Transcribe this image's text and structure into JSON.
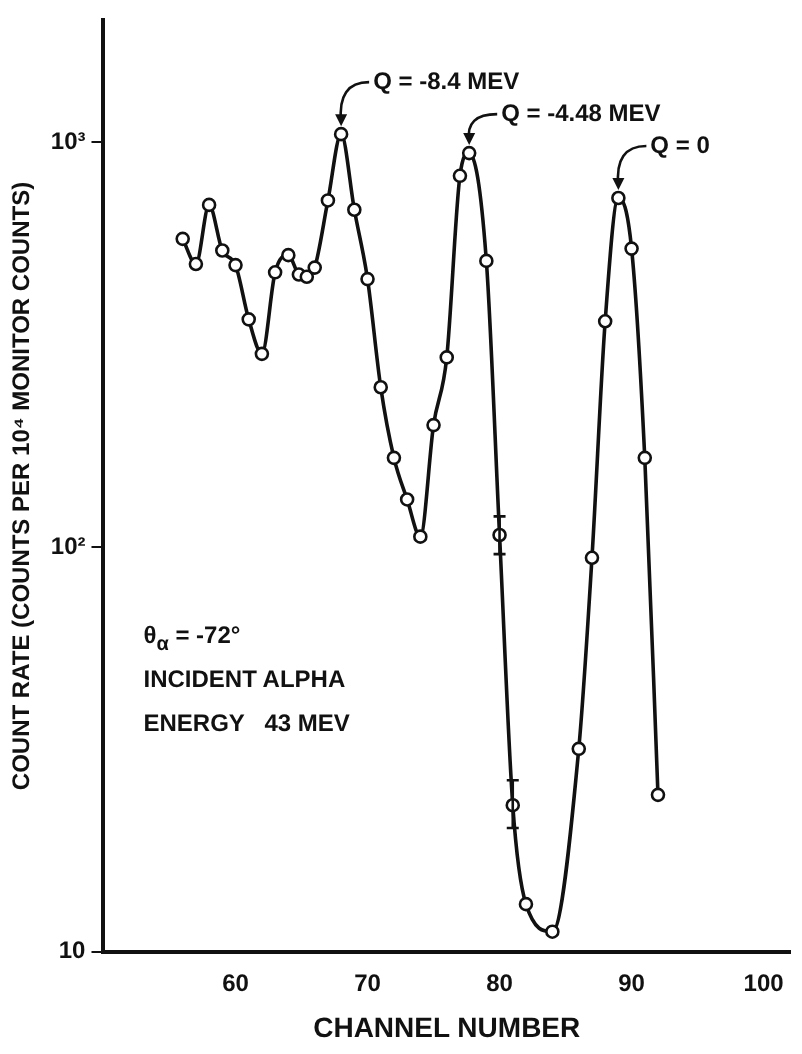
{
  "chart_data": {
    "type": "line",
    "xlabel": "CHANNEL NUMBER",
    "ylabel": "COUNT RATE (COUNTS PER 10⁴ MONITOR COUNTS)",
    "x": [
      56,
      57,
      58,
      59,
      60,
      61,
      62,
      63,
      64,
      64.8,
      65.4,
      66,
      67,
      68,
      69,
      70,
      71,
      72,
      73,
      74,
      75,
      76,
      77,
      77.7,
      79,
      80,
      81,
      82,
      84,
      86,
      87,
      88,
      89,
      90,
      91,
      92
    ],
    "series": [
      {
        "color": "#111111",
        "values": [
          577,
          500,
          700,
          540,
          497,
          365,
          300,
          477,
          526,
          471,
          465,
          490,
          718,
          1047,
          681,
          459,
          248,
          166,
          131,
          106,
          200,
          294,
          826,
          940,
          509,
          107,
          23,
          13.1,
          11.2,
          31.7,
          94,
          361,
          728,
          546,
          166,
          24.4
        ],
        "errors": [
          null,
          null,
          null,
          null,
          null,
          null,
          null,
          null,
          null,
          null,
          null,
          null,
          null,
          null,
          null,
          null,
          null,
          null,
          null,
          null,
          null,
          null,
          null,
          null,
          null,
          [
            96,
            119
          ],
          [
            20.2,
            26.5
          ],
          null,
          null,
          null,
          null,
          null,
          null,
          null,
          null,
          null
        ]
      }
    ],
    "log": "y",
    "xlim": [
      50,
      102
    ],
    "xticks": [
      60,
      70,
      80,
      90,
      100
    ],
    "ylim": [
      10,
      2000
    ],
    "yticks": [
      10,
      {
        "value": 100,
        "label": "10²"
      },
      {
        "value": 1000,
        "label": "10³"
      }
    ],
    "grid": false,
    "legend": false,
    "marker": "circle",
    "line_style": "solid",
    "annotations": [
      {
        "text": "Q = -8.4 MEV",
        "x": 68,
        "y": 1047
      },
      {
        "text": "Q = -4.48 MEV",
        "x": 77.7,
        "y": 940
      },
      {
        "text": "Q = 0",
        "x": 89,
        "y": 728
      },
      "θ$_{α}$ = -72°",
      "INCIDENT ALPHA",
      "ENERGY   43 MEV"
    ]
  }
}
